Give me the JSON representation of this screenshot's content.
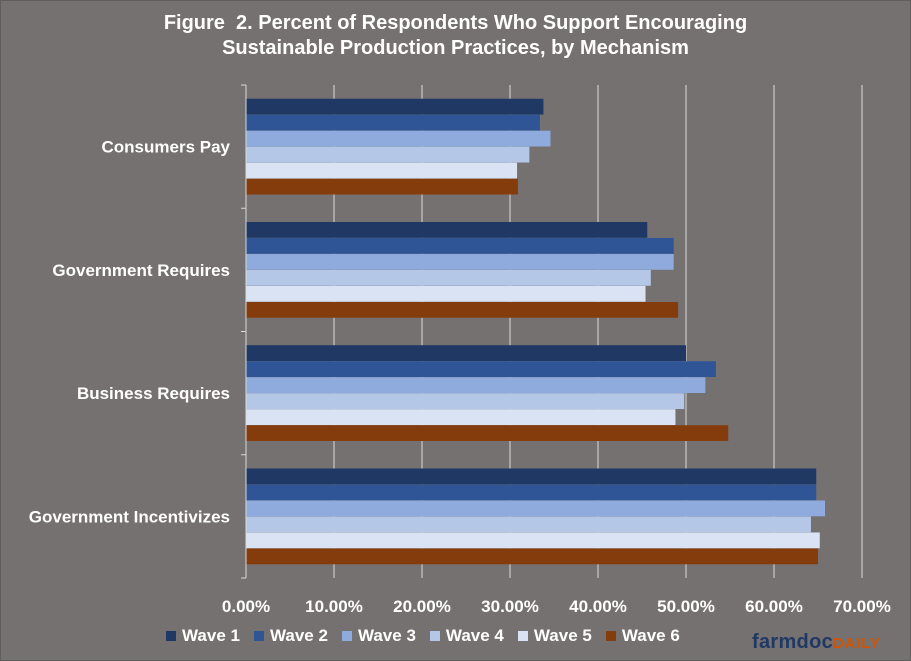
{
  "chart_data": {
    "type": "bar",
    "orientation": "horizontal",
    "title": "Figure  2. Percent of Respondents Who Support Encouraging\nSustainable Production Practices, by Mechanism",
    "categories": [
      "Consumers Pay",
      "Government Requires",
      "Business Requires",
      "Government Incentivizes"
    ],
    "series": [
      {
        "name": "Wave 1",
        "color": "#1f3864",
        "values": [
          33.8,
          45.6,
          50.0,
          64.8
        ]
      },
      {
        "name": "Wave 2",
        "color": "#2f5597",
        "values": [
          33.4,
          48.6,
          53.4,
          64.8
        ]
      },
      {
        "name": "Wave 3",
        "color": "#8faadc",
        "values": [
          34.6,
          48.6,
          52.2,
          65.8
        ]
      },
      {
        "name": "Wave 4",
        "color": "#b4c7e7",
        "values": [
          32.2,
          46.0,
          49.8,
          64.2
        ]
      },
      {
        "name": "Wave 5",
        "color": "#dae3f3",
        "values": [
          30.8,
          45.4,
          48.8,
          65.2
        ]
      },
      {
        "name": "Wave 6",
        "color": "#843c0c",
        "values": [
          30.9,
          49.1,
          54.8,
          65.0
        ]
      }
    ],
    "xlim": [
      0,
      70
    ],
    "xticks": [
      0,
      10,
      20,
      30,
      40,
      50,
      60,
      70
    ],
    "xtick_labels": [
      "0.00%",
      "10.00%",
      "20.00%",
      "30.00%",
      "40.00%",
      "50.00%",
      "60.00%",
      "70.00%"
    ],
    "xlabel": "",
    "ylabel": "",
    "grid": "vertical",
    "legend_position": "bottom"
  },
  "brand": {
    "part1": "farmdoc",
    "part2": "DAILY"
  }
}
